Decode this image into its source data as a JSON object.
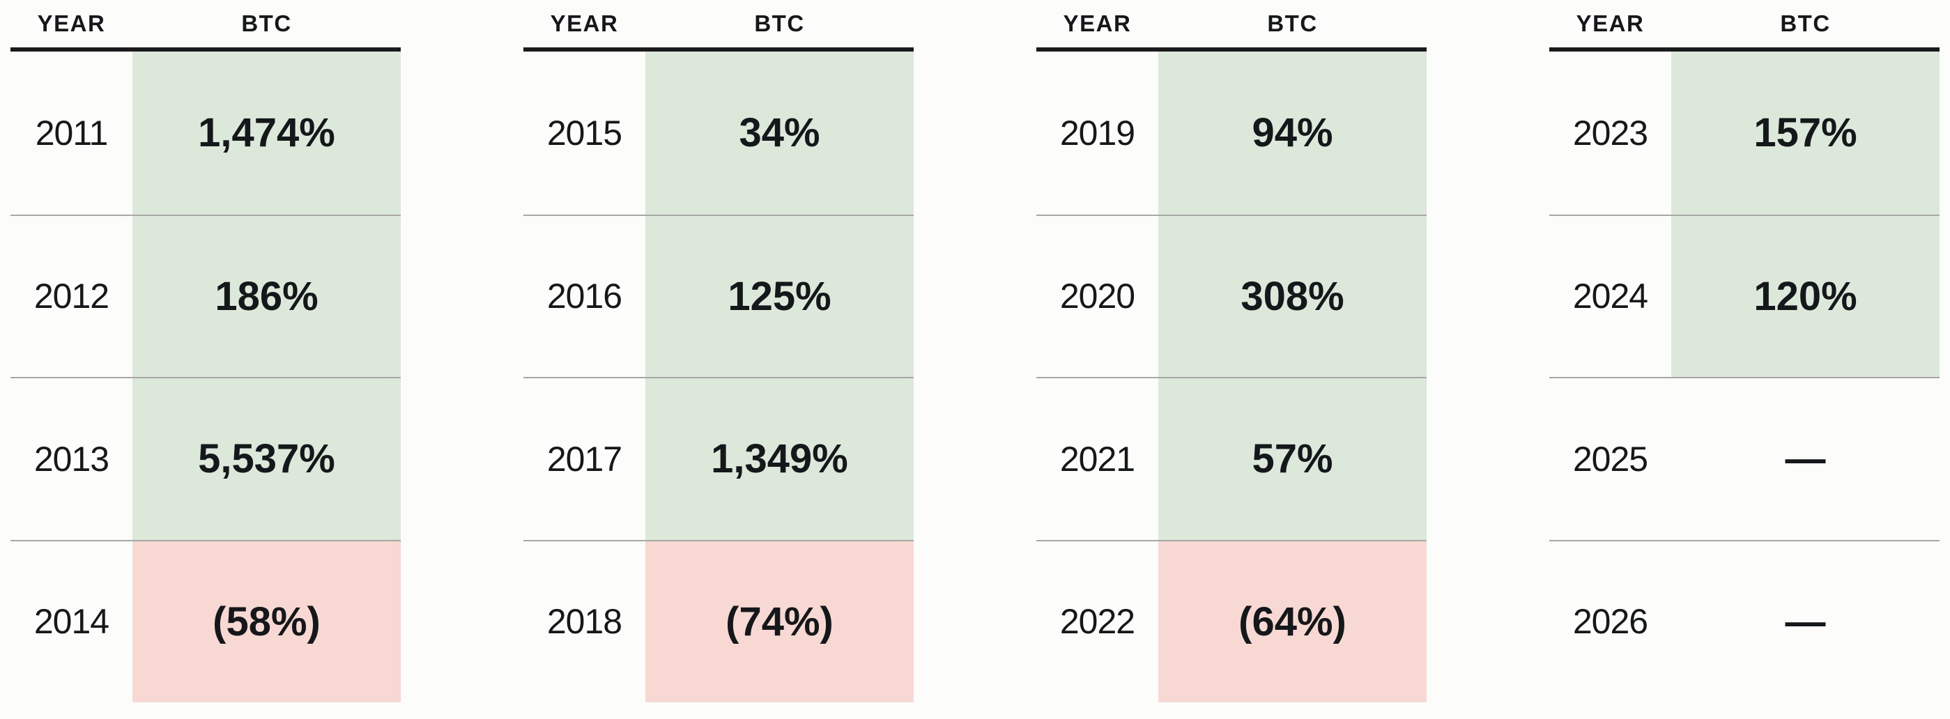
{
  "table": {
    "header": {
      "year_label": "YEAR",
      "asset_label": "BTC"
    },
    "groups": [
      {
        "rows": [
          {
            "year": "2011",
            "value": "1,474%",
            "status": "positive"
          },
          {
            "year": "2012",
            "value": "186%",
            "status": "positive"
          },
          {
            "year": "2013",
            "value": "5,537%",
            "status": "positive"
          },
          {
            "year": "2014",
            "value": "(58%)",
            "status": "negative"
          }
        ]
      },
      {
        "rows": [
          {
            "year": "2015",
            "value": "34%",
            "status": "positive"
          },
          {
            "year": "2016",
            "value": "125%",
            "status": "positive"
          },
          {
            "year": "2017",
            "value": "1,349%",
            "status": "positive"
          },
          {
            "year": "2018",
            "value": "(74%)",
            "status": "negative"
          }
        ]
      },
      {
        "rows": [
          {
            "year": "2019",
            "value": "94%",
            "status": "positive"
          },
          {
            "year": "2020",
            "value": "308%",
            "status": "positive"
          },
          {
            "year": "2021",
            "value": "57%",
            "status": "positive"
          },
          {
            "year": "2022",
            "value": "(64%)",
            "status": "negative"
          }
        ]
      },
      {
        "rows": [
          {
            "year": "2023",
            "value": "157%",
            "status": "positive"
          },
          {
            "year": "2024",
            "value": "120%",
            "status": "positive"
          },
          {
            "year": "2025",
            "value": "—",
            "status": "none"
          },
          {
            "year": "2026",
            "value": "—",
            "status": "none"
          }
        ]
      }
    ]
  },
  "colors": {
    "page_bg": "#fcfcfa",
    "text": "#15181a",
    "rule": "#191b1c",
    "divider": "#a7a7a5",
    "positive_bg": "#dce8d9",
    "negative_bg": "#f8d8d2"
  },
  "chart_data": {
    "type": "table",
    "title": "",
    "columns": [
      "YEAR",
      "BTC"
    ],
    "rows": [
      [
        "2011",
        "1,474%"
      ],
      [
        "2012",
        "186%"
      ],
      [
        "2013",
        "5,537%"
      ],
      [
        "2014",
        "(58%)"
      ],
      [
        "2015",
        "34%"
      ],
      [
        "2016",
        "125%"
      ],
      [
        "2017",
        "1,349%"
      ],
      [
        "2018",
        "(74%)"
      ],
      [
        "2019",
        "94%"
      ],
      [
        "2020",
        "308%"
      ],
      [
        "2021",
        "57%"
      ],
      [
        "2022",
        "(64%)"
      ],
      [
        "2023",
        "157%"
      ],
      [
        "2024",
        "120%"
      ],
      [
        "2025",
        "—"
      ],
      [
        "2026",
        "—"
      ]
    ],
    "btc_return_pct": {
      "2011": 1474,
      "2012": 186,
      "2013": 5537,
      "2014": -58,
      "2015": 34,
      "2016": 125,
      "2017": 1349,
      "2018": -74,
      "2019": 94,
      "2020": 308,
      "2021": 57,
      "2022": -64,
      "2023": 157,
      "2024": 120,
      "2025": null,
      "2026": null
    },
    "layout_hints": {
      "groups_of_rows": 4,
      "positive_cell_color": "#dce8d9",
      "negative_cell_color": "#f8d8d2",
      "negative_shown_in_parentheses": true,
      "missing_value_glyph": "—"
    }
  }
}
